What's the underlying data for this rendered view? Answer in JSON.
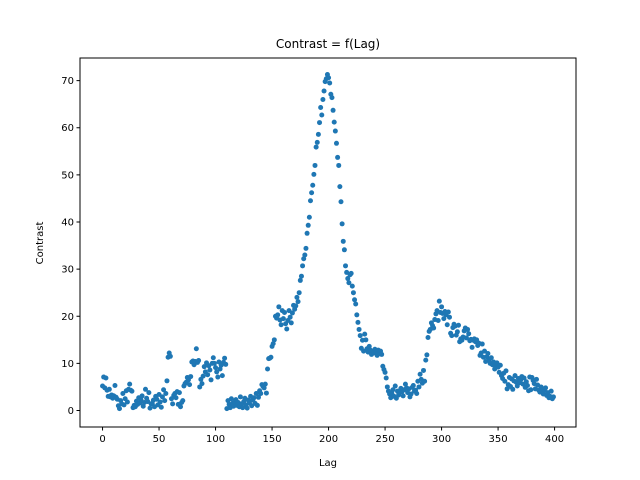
{
  "chart_data": {
    "type": "scatter",
    "title": "Contrast = f(Lag)",
    "x_label": "Lag",
    "y_label": "Contrast",
    "color": "#1f77b4",
    "x": [
      0,
      1,
      2,
      3,
      4,
      5,
      6,
      7,
      8,
      9,
      10,
      11,
      12,
      13,
      14,
      15,
      16,
      17,
      18,
      19,
      20,
      21,
      22,
      23,
      24,
      25,
      26,
      27,
      28,
      29,
      30,
      31,
      32,
      33,
      34,
      35,
      36,
      37,
      38,
      39,
      40,
      41,
      42,
      43,
      44,
      45,
      46,
      47,
      48,
      49,
      50,
      51,
      52,
      53,
      54,
      55,
      56,
      57,
      58,
      59,
      60,
      61,
      62,
      63,
      64,
      65,
      66,
      67,
      68,
      69,
      70,
      71,
      72,
      73,
      74,
      75,
      76,
      77,
      78,
      79,
      80,
      81,
      82,
      83,
      84,
      85,
      86,
      87,
      88,
      89,
      90,
      91,
      92,
      93,
      94,
      95,
      96,
      97,
      98,
      99,
      100,
      101,
      102,
      103,
      104,
      105,
      106,
      107,
      108,
      109,
      110,
      111,
      112,
      113,
      114,
      115,
      116,
      117,
      118,
      119,
      120,
      121,
      122,
      123,
      124,
      125,
      126,
      127,
      128,
      129,
      130,
      131,
      132,
      133,
      134,
      135,
      136,
      137,
      138,
      139,
      140,
      141,
      142,
      143,
      144,
      145,
      146,
      147,
      148,
      149,
      150,
      151,
      152,
      153,
      154,
      155,
      156,
      157,
      158,
      159,
      160,
      161,
      162,
      163,
      164,
      165,
      166,
      167,
      168,
      169,
      170,
      171,
      172,
      173,
      174,
      175,
      176,
      177,
      178,
      179,
      180,
      181,
      182,
      183,
      184,
      185,
      186,
      187,
      188,
      189,
      190,
      191,
      192,
      193,
      194,
      195,
      196,
      197,
      198,
      199,
      200,
      201,
      202,
      203,
      204,
      205,
      206,
      207,
      208,
      209,
      210,
      211,
      212,
      213,
      214,
      215,
      216,
      217,
      218,
      219,
      220,
      221,
      222,
      223,
      224,
      225,
      226,
      227,
      228,
      229,
      230,
      231,
      232,
      233,
      234,
      235,
      236,
      237,
      238,
      239,
      240,
      241,
      242,
      243,
      244,
      245,
      246,
      247,
      248,
      249,
      250,
      251,
      252,
      253,
      254,
      255,
      256,
      257,
      258,
      259,
      260,
      261,
      262,
      263,
      264,
      265,
      266,
      267,
      268,
      269,
      270,
      271,
      272,
      273,
      274,
      275,
      276,
      277,
      278,
      279,
      280,
      281,
      282,
      283,
      284,
      285,
      286,
      287,
      288,
      289,
      290,
      291,
      292,
      293,
      294,
      295,
      296,
      297,
      298,
      299,
      300,
      301,
      302,
      303,
      304,
      305,
      306,
      307,
      308,
      309,
      310,
      311,
      312,
      313,
      314,
      315,
      316,
      317,
      318,
      319,
      320,
      321,
      322,
      323,
      324,
      325,
      326,
      327,
      328,
      329,
      330,
      331,
      332,
      333,
      334,
      335,
      336,
      337,
      338,
      339,
      340,
      341,
      342,
      343,
      344,
      345,
      346,
      347,
      348,
      349,
      350,
      351,
      352,
      353,
      354,
      355,
      356,
      357,
      358,
      359,
      360,
      361,
      362,
      363,
      364,
      365,
      366,
      367,
      368,
      369,
      370,
      371,
      372,
      373,
      374,
      375,
      376,
      377,
      378,
      379,
      380,
      381,
      382,
      383,
      384,
      385,
      386,
      387,
      388,
      389,
      390,
      391,
      392,
      393,
      394,
      395,
      396,
      397,
      398,
      399
    ],
    "values": [
      5.2,
      7.1,
      4.8,
      6.9,
      4.3,
      3.0,
      4.5,
      2.9,
      3.3,
      2.6,
      3.1,
      5.3,
      2.8,
      2.4,
      1.0,
      0.4,
      2.1,
      1.4,
      3.6,
      1.2,
      2.5,
      4.2,
      1.8,
      4.5,
      5.6,
      4.3,
      4.1,
      0.6,
      1.1,
      0.8,
      2.0,
      1.3,
      2.7,
      1.6,
      2.3,
      3.1,
      0.9,
      1.7,
      4.5,
      2.6,
      1.9,
      3.8,
      0.5,
      1.4,
      1.5,
      2.2,
      0.8,
      3.0,
      2.4,
      1.2,
      3.4,
      1.8,
      0.7,
      2.9,
      4.4,
      2.1,
      3.6,
      6.3,
      11.3,
      12.2,
      11.5,
      2.5,
      1.4,
      3.2,
      3.6,
      2.7,
      4.0,
      1.3,
      3.8,
      0.8,
      1.7,
      2.1,
      5.2,
      5.7,
      6.0,
      7.0,
      6.5,
      5.5,
      7.2,
      10.3,
      10.5,
      9.7,
      10.4,
      13.1,
      10.2,
      10.6,
      5.0,
      6.6,
      5.7,
      7.3,
      9.3,
      8.2,
      10.1,
      7.6,
      9.5,
      8.6,
      6.5,
      10.0,
      11.2,
      10.0,
      9.1,
      8.2,
      7.1,
      10.3,
      8.8,
      9.6,
      7.4,
      10.2,
      11.1,
      9.8,
      0.4,
      2.1,
      1.3,
      0.6,
      2.5,
      1.5,
      0.9,
      1.8,
      2.3,
      1.1,
      1.7,
      0.8,
      2.9,
      1.4,
      0.6,
      1.9,
      2.6,
      1.2,
      0.5,
      2.2,
      1.6,
      3.0,
      1.0,
      2.2,
      2.7,
      1.5,
      3.6,
      1.1,
      2.8,
      4.2,
      3.6,
      5.5,
      5.1,
      4.8,
      5.6,
      3.7,
      8.8,
      11.0,
      11.1,
      11.3,
      13.6,
      14.2,
      15.0,
      20.0,
      19.6,
      20.3,
      22.0,
      19.2,
      18.2,
      21.2,
      19.5,
      20.8,
      18.4,
      17.3,
      19.1,
      21.2,
      19.8,
      18.6,
      20.7,
      22.3,
      21.5,
      22.2,
      24.0,
      23.1,
      25.0,
      27.6,
      28.5,
      30.7,
      32.2,
      33.0,
      34.4,
      37.6,
      39.3,
      41.0,
      44.5,
      46.2,
      47.8,
      50.1,
      52.0,
      55.9,
      56.9,
      58.6,
      61.1,
      64.3,
      62.7,
      66.0,
      67.8,
      69.8,
      70.4,
      71.3,
      70.6,
      69.5,
      67.1,
      66.4,
      63.7,
      61.2,
      59.3,
      56.7,
      53.7,
      52.0,
      47.5,
      44.3,
      39.6,
      35.9,
      34.1,
      30.7,
      29.3,
      28.0,
      27.1,
      28.8,
      29.1,
      26.4,
      25.0,
      23.5,
      22.6,
      20.3,
      18.7,
      17.2,
      15.9,
      13.2,
      14.9,
      12.6,
      16.2,
      15.0,
      13.1,
      12.4,
      13.6,
      12.8,
      11.9,
      12.5,
      12.2,
      13.0,
      12.4,
      11.7,
      12.8,
      12.1,
      12.6,
      11.9,
      9.4,
      8.7,
      8.1,
      6.9,
      5.0,
      4.1,
      3.5,
      2.7,
      3.6,
      4.4,
      3.0,
      5.2,
      2.6,
      4.1,
      3.3,
      3.9,
      4.7,
      4.0,
      3.1,
      4.4,
      5.6,
      4.8,
      3.8,
      4.6,
      2.9,
      3.5,
      4.9,
      5.3,
      4.1,
      4.3,
      3.6,
      6.2,
      5.0,
      7.7,
      6.6,
      5.8,
      8.5,
      6.2,
      10.7,
      11.8,
      15.5,
      16.8,
      17.2,
      18.6,
      18.0,
      17.5,
      19.3,
      20.5,
      21.2,
      19.1,
      23.2,
      20.8,
      22.0,
      20.6,
      19.5,
      21.0,
      20.3,
      18.2,
      20.9,
      19.8,
      16.4,
      15.9,
      17.6,
      18.3,
      17.9,
      16.0,
      16.7,
      18.1,
      14.6,
      15.2,
      14.9,
      15.6,
      16.9,
      17.5,
      15.4,
      17.2,
      16.3,
      14.8,
      15.1,
      13.4,
      14.9,
      15.2,
      14.6,
      15.0,
      13.8,
      14.3,
      11.7,
      12.2,
      14.1,
      11.3,
      12.6,
      10.4,
      11.4,
      12.1,
      10.7,
      10.0,
      11.2,
      9.7,
      10.3,
      8.8,
      9.5,
      10.1,
      9.2,
      8.1,
      9.6,
      7.4,
      6.8,
      7.9,
      6.2,
      8.4,
      4.6,
      5.5,
      7.0,
      5.1,
      6.7,
      4.5,
      6.3,
      7.4,
      6.0,
      5.2,
      6.8,
      5.9,
      6.5,
      7.2,
      5.6,
      6.9,
      4.9,
      6.1,
      5.3,
      4.2,
      7.1,
      4.4,
      7.0,
      6.4,
      5.7,
      4.6,
      6.6,
      5.4,
      4.3,
      3.9,
      5.0,
      4.1,
      3.5,
      4.3,
      4.8,
      3.2,
      3.8,
      2.7,
      3.0,
      4.1,
      2.5,
      2.9
    ],
    "xlim": [
      -19.95,
      418.95
    ],
    "ylim": [
      -3.5,
      74.8
    ],
    "xticks": [
      0,
      50,
      100,
      150,
      200,
      250,
      300,
      350,
      400
    ],
    "yticks": [
      0,
      10,
      20,
      30,
      40,
      50,
      60,
      70
    ],
    "grid": false
  }
}
